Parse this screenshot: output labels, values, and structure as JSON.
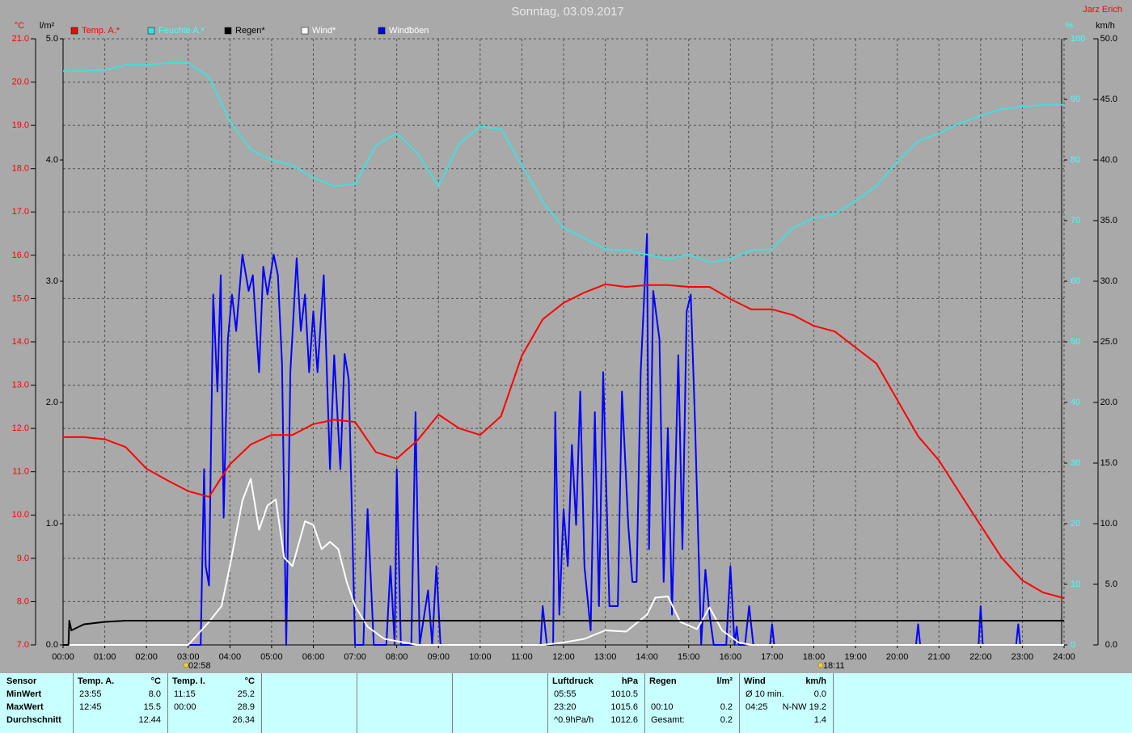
{
  "chart_data": {
    "type": "line",
    "title": "Sonntag, 03.09.2017",
    "author": "Jarz Erich",
    "axis_units": {
      "y": "°C",
      "y2": "l/m²",
      "y3": "%",
      "y4": "km/h"
    },
    "xlim": [
      0,
      24
    ],
    "xticks": [
      {
        "value": 0,
        "label": "00:00"
      },
      {
        "value": 1,
        "label": "01:00"
      },
      {
        "value": 2,
        "label": "02:00"
      },
      {
        "value": 3,
        "label": "03:00"
      },
      {
        "value": 4,
        "label": "04:00"
      },
      {
        "value": 5,
        "label": "05:00"
      },
      {
        "value": 6,
        "label": "06:00"
      },
      {
        "value": 7,
        "label": "07:00"
      },
      {
        "value": 8,
        "label": "08:00"
      },
      {
        "value": 9,
        "label": "09:00"
      },
      {
        "value": 10,
        "label": "10:00"
      },
      {
        "value": 11,
        "label": "11:00"
      },
      {
        "value": 12,
        "label": "12:00"
      },
      {
        "value": 13,
        "label": "13:00"
      },
      {
        "value": 14,
        "label": "14:00"
      },
      {
        "value": 15,
        "label": "15:00"
      },
      {
        "value": 16,
        "label": "16:00"
      },
      {
        "value": 17,
        "label": "17:00"
      },
      {
        "value": 18,
        "label": "18:00"
      },
      {
        "value": 19,
        "label": "19:00"
      },
      {
        "value": 20,
        "label": "20:00"
      },
      {
        "value": 21,
        "label": "21:00"
      },
      {
        "value": 22,
        "label": "22:00"
      },
      {
        "value": 23,
        "label": "23:00"
      },
      {
        "value": 24,
        "label": "24:00"
      }
    ],
    "ylim": [
      7,
      21
    ],
    "yticks": [
      {
        "value": 7,
        "label": "7.0"
      },
      {
        "value": 8,
        "label": "8.0"
      },
      {
        "value": 9,
        "label": "9.0"
      },
      {
        "value": 10,
        "label": "10.0"
      },
      {
        "value": 11,
        "label": "11.0"
      },
      {
        "value": 12,
        "label": "12.0"
      },
      {
        "value": 13,
        "label": "13.0"
      },
      {
        "value": 14,
        "label": "14.0"
      },
      {
        "value": 15,
        "label": "15.0"
      },
      {
        "value": 16,
        "label": "16.0"
      },
      {
        "value": 17,
        "label": "17.0"
      },
      {
        "value": 18,
        "label": "18.0"
      },
      {
        "value": 19,
        "label": "19.0"
      },
      {
        "value": 20,
        "label": "20.0"
      },
      {
        "value": 21,
        "label": "21.0"
      }
    ],
    "y2lim": [
      0,
      5
    ],
    "y2ticks": [
      {
        "value": 0,
        "label": "0.0"
      },
      {
        "value": 1,
        "label": "1.0"
      },
      {
        "value": 2,
        "label": "2.0"
      },
      {
        "value": 3,
        "label": "3.0"
      },
      {
        "value": 4,
        "label": "4.0"
      },
      {
        "value": 5,
        "label": "5.0"
      }
    ],
    "y3lim": [
      0,
      100
    ],
    "y3ticks": [
      0,
      10,
      20,
      30,
      40,
      50,
      60,
      70,
      80,
      90,
      100
    ],
    "y4lim": [
      0,
      50
    ],
    "y4ticks": [
      {
        "value": 0,
        "label": "0.0"
      },
      {
        "value": 5,
        "label": "5.0"
      },
      {
        "value": 10,
        "label": "10.0"
      },
      {
        "value": 15,
        "label": "15.0"
      },
      {
        "value": 20,
        "label": "20.0"
      },
      {
        "value": 25,
        "label": "25.0"
      },
      {
        "value": 30,
        "label": "30.0"
      },
      {
        "value": 35,
        "label": "35.0"
      },
      {
        "value": 40,
        "label": "40.0"
      },
      {
        "value": 45,
        "label": "45.0"
      },
      {
        "value": 50,
        "label": "50.0"
      }
    ],
    "grid": true,
    "series": [
      {
        "name": "Temp. A.*",
        "color": "#ff0000",
        "legend_color": "#ff0000",
        "axis": "y",
        "x": [
          0,
          0.5,
          1,
          1.5,
          2,
          2.5,
          3,
          3.5,
          4,
          4.5,
          5,
          5.5,
          6,
          6.5,
          7,
          7.5,
          8,
          8.5,
          9,
          9.5,
          10,
          10.5,
          11,
          11.5,
          12,
          12.5,
          13,
          13.5,
          14,
          14.5,
          15,
          15.5,
          16,
          16.5,
          17,
          17.5,
          18,
          18.5,
          19,
          19.5,
          20,
          20.5,
          21,
          21.5,
          22,
          22.5,
          23,
          23.5,
          24
        ],
        "values": [
          11.8,
          11.8,
          11.75,
          11.57,
          11.07,
          10.8,
          10.55,
          10.42,
          11.17,
          11.63,
          11.85,
          11.85,
          12.1,
          12.2,
          12.15,
          11.45,
          11.3,
          11.73,
          12.32,
          12.0,
          11.85,
          12.28,
          13.68,
          14.52,
          14.9,
          15.14,
          15.33,
          15.27,
          15.31,
          15.31,
          15.27,
          15.27,
          14.99,
          14.75,
          14.75,
          14.62,
          14.37,
          14.24,
          13.87,
          13.5,
          12.66,
          11.82,
          11.26,
          10.51,
          9.76,
          9.02,
          8.49,
          8.21,
          8.08
        ]
      },
      {
        "name": "Feuchte A.*",
        "color": "#40e0e0",
        "legend_color": "#40ffff",
        "axis": "y3",
        "x": [
          0,
          0.5,
          1,
          1.5,
          2,
          2.5,
          3,
          3.5,
          4,
          4.5,
          5,
          5.5,
          6,
          6.5,
          7,
          7.5,
          8,
          8.5,
          9,
          9.5,
          10,
          10.5,
          11,
          11.5,
          12,
          12.5,
          13,
          13.5,
          14,
          14.5,
          15,
          15.5,
          16,
          16.5,
          17,
          17.5,
          18,
          18.5,
          19,
          19.5,
          20,
          20.5,
          21,
          21.5,
          22,
          22.5,
          23,
          23.5,
          24
        ],
        "values": [
          94.7,
          94.7,
          94.9,
          95.7,
          95.7,
          96,
          96,
          93.7,
          86.4,
          81.7,
          80,
          79.1,
          77.1,
          75.7,
          76,
          82.4,
          84.4,
          81.1,
          75.7,
          82.7,
          85.5,
          85.1,
          79.1,
          73.1,
          68.8,
          67.1,
          65.3,
          65.1,
          64.4,
          63.7,
          64.4,
          63.1,
          63.7,
          65.1,
          65.3,
          68.8,
          70.4,
          71.1,
          73.3,
          75.7,
          79.7,
          83.1,
          84.4,
          86.1,
          87.3,
          88.4,
          88.8,
          89.1,
          89.1
        ]
      },
      {
        "name": "Regen*",
        "color": "#000000",
        "legend_color": "#000000",
        "axis": "y2",
        "x": [
          0,
          0.13,
          0.15,
          0.2,
          0.5,
          1,
          1.5,
          24
        ],
        "values": [
          0,
          0,
          0.2,
          0.12,
          0.17,
          0.19,
          0.2,
          0.2
        ]
      },
      {
        "name": "Wind*",
        "color": "#ffffff",
        "legend_color": "#ffffff",
        "axis": "y4",
        "x": [
          0,
          3,
          3.5,
          3.8,
          4,
          4.3,
          4.5,
          4.7,
          4.9,
          5.1,
          5.3,
          5.5,
          5.8,
          6,
          6.2,
          6.4,
          6.6,
          6.8,
          7,
          7.3,
          7.7,
          8.5,
          11.5,
          12,
          12.5,
          13,
          13.5,
          14,
          14.2,
          14.5,
          14.8,
          15.2,
          15.5,
          15.8,
          16.2,
          16.5,
          24
        ],
        "values": [
          0,
          0,
          1.9,
          3.2,
          6.5,
          11.9,
          13.7,
          9.5,
          11.5,
          12,
          7.2,
          6.5,
          10.2,
          9.9,
          7.9,
          8.5,
          7.9,
          5.2,
          3.2,
          1.5,
          0.5,
          0,
          0,
          0.2,
          0.5,
          1.2,
          1.1,
          2.5,
          3.9,
          4,
          1.9,
          1.3,
          3.1,
          1.2,
          0.2,
          0,
          0
        ]
      },
      {
        "name": "Windböen",
        "color": "#0000ff",
        "legend_color": "#ffffff",
        "axis": "y4",
        "x": [
          0,
          3.3,
          3.38,
          3.42,
          3.5,
          3.6,
          3.7,
          3.78,
          3.85,
          3.95,
          4.05,
          4.15,
          4.3,
          4.45,
          4.55,
          4.7,
          4.8,
          4.9,
          5.05,
          5.15,
          5.25,
          5.35,
          5.45,
          5.6,
          5.7,
          5.8,
          5.9,
          6.0,
          6.1,
          6.25,
          6.4,
          6.5,
          6.65,
          6.75,
          6.85,
          7.0,
          7.2,
          7.3,
          7.45,
          7.75,
          7.85,
          7.95,
          8.0,
          8.1,
          8.35,
          8.45,
          8.55,
          8.75,
          8.85,
          8.95,
          9.05,
          11.45,
          11.5,
          11.6,
          11.75,
          11.8,
          11.9,
          12.0,
          12.1,
          12.2,
          12.3,
          12.4,
          12.5,
          12.65,
          12.75,
          12.85,
          12.95,
          13.1,
          13.3,
          13.4,
          13.55,
          13.65,
          13.75,
          13.85,
          14.0,
          14.05,
          14.15,
          14.3,
          14.4,
          14.5,
          14.6,
          14.75,
          14.85,
          14.95,
          15.05,
          15.15,
          15.3,
          15.4,
          15.5,
          15.6,
          15.9,
          16.0,
          16.1,
          16.15,
          16.2,
          16.35,
          16.45,
          16.55,
          16.95,
          17.0,
          17.05,
          20.45,
          20.5,
          20.55,
          21.95,
          22.0,
          22.05,
          22.85,
          22.9,
          22.95,
          24
        ],
        "values": [
          0,
          0,
          14.5,
          6.5,
          4.9,
          28.9,
          20.9,
          30.5,
          10.5,
          25.2,
          28.9,
          25.9,
          32.2,
          29.2,
          30.5,
          22.5,
          31.2,
          28.9,
          32.2,
          30.5,
          23.2,
          0,
          22.5,
          31.9,
          25.9,
          28.9,
          22.5,
          27.5,
          22.5,
          30.5,
          14.5,
          23.9,
          14.5,
          24,
          21.9,
          0,
          0,
          11.2,
          0,
          0,
          6.5,
          0,
          14.5,
          0,
          0,
          19.2,
          0,
          4.5,
          0,
          6.5,
          0,
          0,
          3.2,
          0,
          0,
          19.2,
          2.5,
          11.2,
          6.5,
          16.5,
          9.9,
          20.9,
          6.5,
          1.2,
          19.2,
          3.2,
          22.5,
          3.2,
          3.2,
          20.9,
          9.9,
          5.2,
          5.2,
          22.5,
          33.9,
          7.9,
          29.2,
          25.2,
          5.2,
          17.9,
          2.5,
          23.9,
          7.9,
          27.5,
          28.9,
          18.5,
          0,
          6.2,
          2.5,
          0,
          0,
          6.5,
          0,
          1.5,
          0,
          0,
          3.2,
          0,
          0,
          1.7,
          0,
          0,
          1.7,
          0,
          0,
          3.2,
          0,
          0,
          1.7,
          0,
          0
        ]
      }
    ],
    "annotations": [
      {
        "x": 2.967,
        "text": "02:58"
      },
      {
        "x": 18.183,
        "text": "18:11"
      }
    ]
  },
  "stats": {
    "row_labels": [
      "Sensor",
      "MinWert",
      "MaxWert",
      "Durchschnitt"
    ],
    "columns": [
      {
        "header": "Temp. A.",
        "unit": "°C",
        "rows": [
          {
            "time": "23:55",
            "value": "8.0"
          },
          {
            "time": "12:45",
            "value": "15.5"
          },
          {
            "value": "12.44"
          }
        ]
      },
      {
        "header": "Temp. I.",
        "unit": "°C",
        "rows": [
          {
            "time": "11:15",
            "value": "25.2"
          },
          {
            "time": "00:00",
            "value": "28.9"
          },
          {
            "value": "26.34"
          }
        ]
      },
      {
        "header": "Luftdruck",
        "unit": "hPa",
        "rows": [
          {
            "time": "05:55",
            "value": "1010.5"
          },
          {
            "time": "23:20",
            "value": "1015.6"
          },
          {
            "time": "^0.9hPa/h",
            "value": "1012.6"
          }
        ]
      },
      {
        "header": "Regen",
        "unit": "l/m²",
        "rows": [
          null,
          {
            "time": "00:10",
            "value": "0.2"
          },
          {
            "time": "Gesamt:",
            "value": "0.2"
          }
        ]
      },
      {
        "header": "Wind",
        "unit": "km/h",
        "rows": [
          {
            "time": "Ø 10 min.",
            "value": "0.0"
          },
          {
            "time": "04:25",
            "value": "N-NW 19.2"
          },
          {
            "value": "1.4"
          }
        ]
      }
    ]
  }
}
